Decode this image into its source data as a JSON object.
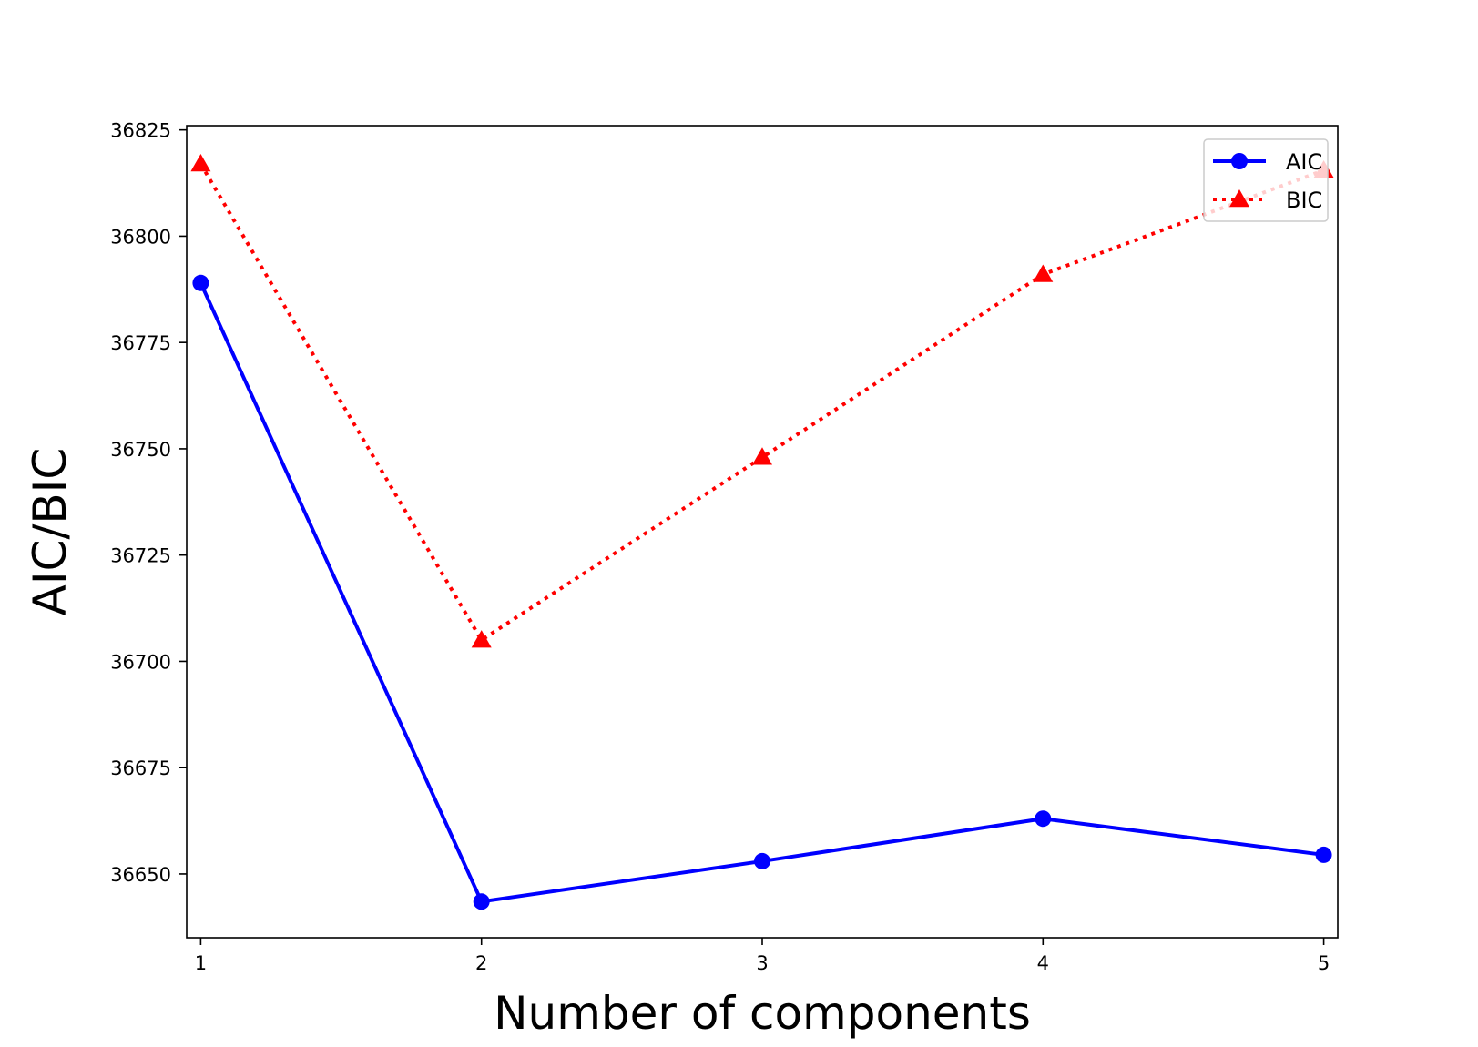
{
  "chart_data": {
    "type": "line",
    "x": [
      1,
      2,
      3,
      4,
      5
    ],
    "series": [
      {
        "name": "AIC",
        "values": [
          36789,
          36643.5,
          36653,
          36663,
          36654.5
        ],
        "color": "#0000ff",
        "line_style": "solid",
        "marker": "circle"
      },
      {
        "name": "BIC",
        "values": [
          36817,
          36705,
          36748,
          36791,
          36815.5
        ],
        "color": "#ff0000",
        "line_style": "dotted",
        "marker": "triangle"
      }
    ],
    "xlabel": "Number of components",
    "ylabel": "AIC/BIC",
    "xlim": [
      0.95,
      5.05
    ],
    "ylim": [
      36635,
      36826
    ],
    "xticks": [
      1,
      2,
      3,
      4,
      5
    ],
    "yticks": [
      36650,
      36675,
      36700,
      36725,
      36750,
      36775,
      36800,
      36825
    ],
    "grid": false,
    "legend_position": "top-right"
  }
}
